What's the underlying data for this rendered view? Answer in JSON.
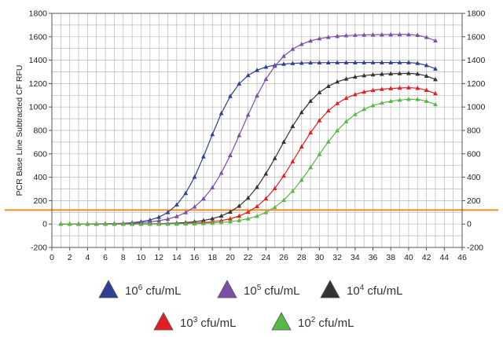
{
  "chart_data": {
    "type": "line",
    "title": "",
    "xlabel": "",
    "ylabel": "PCR Base Line Subtracted CF RFU",
    "xlim": [
      0,
      46
    ],
    "ylim": [
      -200,
      1800
    ],
    "x_ticks": [
      "0",
      "2",
      "4",
      "6",
      "8",
      "10",
      "12",
      "14",
      "16",
      "18",
      "20",
      "22",
      "24",
      "26",
      "28",
      "30",
      "32",
      "34",
      "36",
      "38",
      "40",
      "42",
      "44",
      "46"
    ],
    "y_ticks": [
      "-200",
      "0",
      "200",
      "400",
      "600",
      "800",
      "1000",
      "1200",
      "1400",
      "1600",
      "1800"
    ],
    "grid": true,
    "threshold": {
      "value": 120,
      "color": "#f08a2a"
    },
    "legend": {
      "placement": "bottom"
    },
    "series": [
      {
        "name": "10^6 cfu/mL",
        "legend_base": "10",
        "legend_exp": "6",
        "legend_unit": " cfu/mL",
        "color": "#2e3f95",
        "marker": "triangle",
        "plateau": 1380,
        "midpoint": 17.6,
        "slope": 1.8
      },
      {
        "name": "10^5 cfu/mL",
        "legend_base": "10",
        "legend_exp": "5",
        "legend_unit": " cfu/mL",
        "color": "#7b4fa8",
        "marker": "triangle",
        "plateau": 1620,
        "midpoint": 21.3,
        "slope": 2.3
      },
      {
        "name": "10^4 cfu/mL",
        "legend_base": "10",
        "legend_exp": "4",
        "legend_unit": " cfu/mL",
        "color": "#333333",
        "marker": "triangle",
        "plateau": 1290,
        "midpoint": 25.6,
        "slope": 2.3
      },
      {
        "name": "10^3 cfu/mL",
        "legend_base": "10",
        "legend_exp": "3",
        "legend_unit": " cfu/mL",
        "color": "#e02020",
        "marker": "triangle",
        "plateau": 1170,
        "midpoint": 27.4,
        "slope": 2.3
      },
      {
        "name": "10^2 cfu/mL",
        "legend_base": "10",
        "legend_exp": "2",
        "legend_unit": " cfu/mL",
        "color": "#58b845",
        "marker": "triangle",
        "plateau": 1080,
        "midpoint": 29.5,
        "slope": 2.4
      }
    ]
  }
}
